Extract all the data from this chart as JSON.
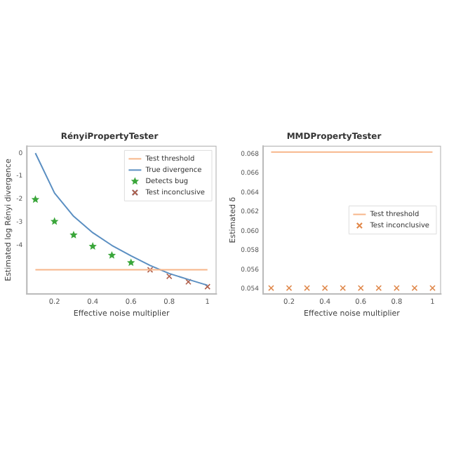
{
  "chart_data": [
    {
      "type": "scatter",
      "title": "RényiPropertyTester",
      "xlabel": "Effective noise multiplier",
      "ylabel": "Estimated log Rényi divergence",
      "xlim": [
        0.055,
        1.045
      ],
      "xticks": [
        0.2,
        0.4,
        0.6,
        0.8,
        1.0
      ],
      "ylim": [
        -6.1,
        0.3
      ],
      "yticks": [
        0,
        -1,
        -2,
        -3,
        -4
      ],
      "grid": false,
      "legend": "top right",
      "series": [
        {
          "name": "Test threshold",
          "type": "line",
          "color": "#f7b68a",
          "x": [
            0.1,
            1.0
          ],
          "values": [
            -5.06,
            -5.06
          ]
        },
        {
          "name": "True divergence",
          "type": "line",
          "color": "#5b8fc2",
          "x": [
            0.1,
            0.2,
            0.3,
            0.4,
            0.5,
            0.6,
            0.7,
            0.8,
            0.9,
            1.0
          ],
          "values": [
            0,
            -1.73,
            -2.74,
            -3.45,
            -4.0,
            -4.45,
            -4.87,
            -5.22,
            -5.48,
            -5.73
          ]
        },
        {
          "name": "Detects bug",
          "type": "scatter",
          "marker": "star",
          "color": "#3aa63a",
          "x": [
            0.1,
            0.2,
            0.3,
            0.4,
            0.5,
            0.6
          ],
          "values": [
            -2.01,
            -2.96,
            -3.55,
            -4.04,
            -4.43,
            -4.75
          ]
        },
        {
          "name": "Test inconclusive",
          "type": "scatter",
          "marker": "cross",
          "color": "#b0604c",
          "x": [
            0.7,
            0.8,
            0.9,
            1.0
          ],
          "values": [
            -5.06,
            -5.34,
            -5.58,
            -5.79
          ]
        }
      ]
    },
    {
      "type": "scatter",
      "title": "MMDPropertyTester",
      "xlabel": "Effective noise multiplier",
      "ylabel": "Estimated δ",
      "xlim": [
        0.055,
        1.045
      ],
      "xticks": [
        0.2,
        0.4,
        0.6,
        0.8,
        1.0
      ],
      "ylim": [
        0.0535,
        0.0688
      ],
      "yticks": [
        {
          "value": 0.054,
          "label": "0.054"
        },
        {
          "value": 0.056,
          "label": "0.056"
        },
        {
          "value": 0.058,
          "label": "0.058"
        },
        {
          "value": 0.06,
          "label": "0.060"
        },
        {
          "value": 0.062,
          "label": "0.062"
        },
        {
          "value": 0.064,
          "label": "0.064"
        },
        {
          "value": 0.066,
          "label": "0.066"
        },
        {
          "value": 0.068,
          "label": "0.068"
        }
      ],
      "grid": false,
      "legend": "right",
      "series": [
        {
          "name": "Test threshold",
          "type": "line",
          "color": "#f7b68a",
          "x": [
            0.1,
            1.0
          ],
          "values": [
            0.0682,
            0.0682
          ]
        },
        {
          "name": "Test inconclusive",
          "type": "scatter",
          "marker": "cross",
          "color": "#e08a4e",
          "x": [
            0.1,
            0.2,
            0.3,
            0.4,
            0.5,
            0.6,
            0.7,
            0.8,
            0.9,
            1.0
          ],
          "values": [
            0.0541,
            0.0541,
            0.0541,
            0.0541,
            0.0541,
            0.0541,
            0.0541,
            0.0541,
            0.0541,
            0.0541
          ]
        }
      ]
    }
  ]
}
